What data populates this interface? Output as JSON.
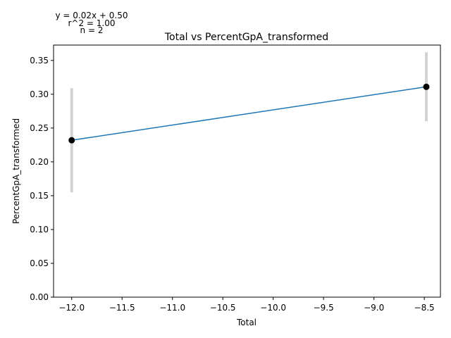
{
  "chart_data": {
    "type": "scatter",
    "title": "Total vs PercentGpA_transformed",
    "xlabel": "Total",
    "ylabel": "PercentGpA_transformed",
    "xlim": [
      -12.18,
      -8.34
    ],
    "ylim": [
      0.0,
      0.3727
    ],
    "x_ticks": [
      -12.0,
      -11.5,
      -11.0,
      -10.5,
      -10.0,
      -9.5,
      -9.0,
      -8.5
    ],
    "x_tick_labels": [
      "−12.0",
      "−11.5",
      "−11.0",
      "−10.5",
      "−10.0",
      "−9.5",
      "−9.0",
      "−8.5"
    ],
    "y_ticks": [
      0.0,
      0.05,
      0.1,
      0.15,
      0.2,
      0.25,
      0.3,
      0.35
    ],
    "y_tick_labels": [
      "0.00",
      "0.05",
      "0.10",
      "0.15",
      "0.20",
      "0.25",
      "0.30",
      "0.35"
    ],
    "grid": false,
    "points": [
      {
        "x": -12.0,
        "y": 0.232,
        "err_low": 0.155,
        "err_high": 0.309
      },
      {
        "x": -8.48,
        "y": 0.311,
        "err_low": 0.26,
        "err_high": 0.362
      }
    ],
    "fit_line": {
      "x": [
        -12.0,
        -8.48
      ],
      "y": [
        0.232,
        0.311
      ]
    },
    "colors": {
      "points": "#000000",
      "fit": "#1f77b4",
      "error_bars": "#d3d3d3"
    },
    "annotations": [
      "y = 0.02x + 0.50",
      "r^2 = 1.00",
      "n = 2"
    ]
  }
}
